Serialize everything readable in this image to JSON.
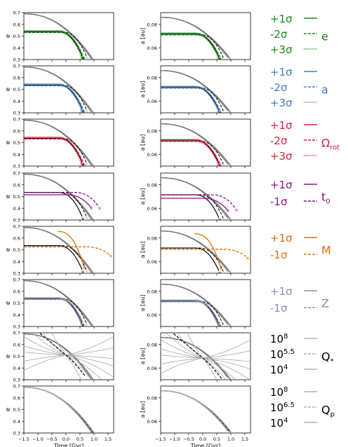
{
  "figure": {
    "x_axis": {
      "label": "Time [Gyr]",
      "ticks": [
        "−1.5",
        "−1.0",
        "−0.5",
        "0.0",
        "0.5",
        "1.0",
        "1.5"
      ],
      "range": [
        -1.5,
        1.7
      ]
    },
    "left_axis": {
      "label": "e",
      "ticks_7": [
        "0.7",
        "0.6",
        "0.5",
        "0.4",
        "0.3"
      ],
      "range": [
        0.3,
        0.7
      ]
    },
    "right_axis": {
      "label": "a [au]",
      "ticks": [
        "0.08",
        "0.06"
      ],
      "range": [
        0.05,
        0.09
      ]
    }
  },
  "colors": {
    "e": "#1a8a1a",
    "a": "#3f7fbf",
    "rot": "#d6203d",
    "t0": "#8a108a",
    "M": "#e06d10",
    "Z": "#8090a8",
    "Qs": "#b0b0b0",
    "Qp": "#b0b0b0",
    "base": "#000000",
    "grey": "#7a7a7a"
  },
  "legend": [
    {
      "id": "e",
      "entries": [
        "+1σ",
        "-2σ",
        "+3σ"
      ],
      "styles": [
        "solid",
        "dash",
        "dot"
      ],
      "name": "e",
      "sub": ""
    },
    {
      "id": "a",
      "entries": [
        "+1σ",
        "-2σ",
        "+3σ"
      ],
      "styles": [
        "solid",
        "dash",
        "dot"
      ],
      "name": "a",
      "sub": ""
    },
    {
      "id": "rot",
      "entries": [
        "+1σ",
        "-2σ",
        "+3σ"
      ],
      "styles": [
        "solid",
        "dash",
        "dot"
      ],
      "name": "Ω",
      "sub": "rot"
    },
    {
      "id": "t0",
      "entries": [
        "+1σ",
        "-1σ"
      ],
      "styles": [
        "solid",
        "dash"
      ],
      "name": "t",
      "sub": "0"
    },
    {
      "id": "M",
      "entries": [
        "+1σ",
        "-1σ"
      ],
      "styles": [
        "solid",
        "dash"
      ],
      "name": "M",
      "sub": ""
    },
    {
      "id": "Z",
      "entries": [
        "+1σ",
        "-1σ"
      ],
      "styles": [
        "solid",
        "dash"
      ],
      "name": "Z",
      "sub": ""
    },
    {
      "id": "Qs",
      "entries": [
        "10^8",
        "10^5.5",
        "10^4"
      ],
      "styles": [
        "solid",
        "dash",
        "solid"
      ],
      "name": "Q",
      "sub": "*"
    },
    {
      "id": "Qp",
      "entries": [
        "10^8",
        "10^6.5",
        "10^4"
      ],
      "styles": [
        "solid",
        "dash",
        "solid"
      ],
      "name": "Q",
      "sub": "p"
    }
  ],
  "chart_data": [
    {
      "type": "line",
      "row": "e",
      "panel": "e",
      "xlabel": "",
      "ylabel": "e",
      "xlim": [
        -1.5,
        1.7
      ],
      "ylim": [
        0.3,
        0.7
      ]
    },
    {
      "type": "line",
      "row": "e",
      "panel": "a",
      "xlabel": "",
      "ylabel": "a [au]",
      "xlim": [
        -1.5,
        1.7
      ],
      "ylim": [
        0.05,
        0.09
      ]
    },
    {
      "type": "line",
      "row": "a",
      "panel": "e",
      "xlabel": "",
      "ylabel": "e",
      "xlim": [
        -1.5,
        1.7
      ],
      "ylim": [
        0.3,
        0.7
      ]
    },
    {
      "type": "line",
      "row": "a",
      "panel": "a",
      "xlabel": "",
      "ylabel": "a [au]",
      "xlim": [
        -1.5,
        1.7
      ],
      "ylim": [
        0.05,
        0.09
      ]
    },
    {
      "type": "line",
      "row": "rot",
      "panel": "e",
      "xlabel": "",
      "ylabel": "e",
      "xlim": [
        -1.5,
        1.7
      ],
      "ylim": [
        0.3,
        0.7
      ]
    },
    {
      "type": "line",
      "row": "rot",
      "panel": "a",
      "xlabel": "",
      "ylabel": "a [au]",
      "xlim": [
        -1.5,
        1.7
      ],
      "ylim": [
        0.05,
        0.09
      ]
    },
    {
      "type": "line",
      "row": "t0",
      "panel": "e",
      "xlabel": "",
      "ylabel": "e",
      "xlim": [
        -1.5,
        1.7
      ],
      "ylim": [
        0.3,
        0.7
      ]
    },
    {
      "type": "line",
      "row": "t0",
      "panel": "a",
      "xlabel": "",
      "ylabel": "a [au]",
      "xlim": [
        -1.5,
        1.7
      ],
      "ylim": [
        0.05,
        0.09
      ]
    },
    {
      "type": "line",
      "row": "M",
      "panel": "e",
      "xlabel": "",
      "ylabel": "e",
      "xlim": [
        -1.5,
        1.7
      ],
      "ylim": [
        0.3,
        0.7
      ]
    },
    {
      "type": "line",
      "row": "M",
      "panel": "a",
      "xlabel": "",
      "ylabel": "a [au]",
      "xlim": [
        -1.5,
        1.7
      ],
      "ylim": [
        0.05,
        0.09
      ]
    },
    {
      "type": "line",
      "row": "Z",
      "panel": "e",
      "xlabel": "",
      "ylabel": "e",
      "xlim": [
        -1.5,
        1.7
      ],
      "ylim": [
        0.3,
        0.7
      ]
    },
    {
      "type": "line",
      "row": "Z",
      "panel": "a",
      "xlabel": "",
      "ylabel": "a [au]",
      "xlim": [
        -1.5,
        1.7
      ],
      "ylim": [
        0.05,
        0.09
      ]
    },
    {
      "type": "line",
      "row": "Qs",
      "panel": "e",
      "xlabel": "",
      "ylabel": "e",
      "xlim": [
        -1.5,
        1.7
      ],
      "ylim": [
        0.3,
        0.7
      ]
    },
    {
      "type": "line",
      "row": "Qs",
      "panel": "a",
      "xlabel": "",
      "ylabel": "a [au]",
      "xlim": [
        -1.5,
        1.7
      ],
      "ylim": [
        0.05,
        0.09
      ]
    },
    {
      "type": "line",
      "row": "Qp",
      "panel": "e",
      "xlabel": "Time [Gyr]",
      "ylabel": "e",
      "xlim": [
        -1.5,
        1.7
      ],
      "ylim": [
        0.3,
        0.7
      ]
    },
    {
      "type": "line",
      "row": "Qp",
      "panel": "a",
      "xlabel": "Time [Gyr]",
      "ylabel": "a [au]",
      "xlim": [
        -1.5,
        1.7
      ],
      "ylim": [
        0.05,
        0.09
      ]
    }
  ]
}
